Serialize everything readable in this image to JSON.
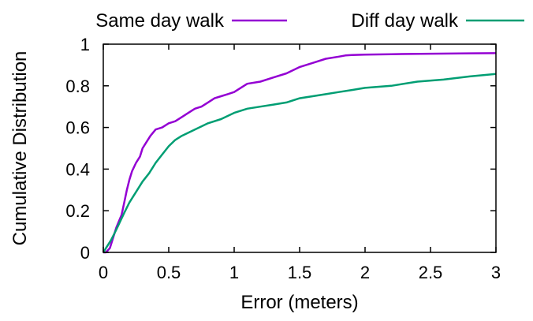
{
  "chart_data": {
    "type": "line",
    "title": "",
    "xlabel": "Error (meters)",
    "ylabel": "Cumulative Distribution",
    "xlim": [
      0,
      3
    ],
    "ylim": [
      0,
      1
    ],
    "xticks": [
      "0",
      "0.5",
      "1",
      "1.5",
      "2",
      "2.5",
      "3"
    ],
    "yticks": [
      "0",
      "0.2",
      "0.4",
      "0.6",
      "0.8",
      "1"
    ],
    "xtick_values": [
      0,
      0.5,
      1,
      1.5,
      2,
      2.5,
      3
    ],
    "ytick_values": [
      0,
      0.2,
      0.4,
      0.6,
      0.8,
      1
    ],
    "grid": false,
    "legend": "top",
    "series": [
      {
        "name": "Same day walk",
        "color": "#9400d3",
        "x": [
          0,
          0.02,
          0.05,
          0.08,
          0.1,
          0.12,
          0.14,
          0.16,
          0.18,
          0.2,
          0.22,
          0.25,
          0.28,
          0.3,
          0.33,
          0.36,
          0.4,
          0.45,
          0.5,
          0.55,
          0.6,
          0.65,
          0.7,
          0.75,
          0.8,
          0.85,
          0.9,
          0.95,
          1.0,
          1.05,
          1.1,
          1.2,
          1.3,
          1.4,
          1.5,
          1.6,
          1.7,
          1.8,
          1.85,
          1.9,
          2.0,
          2.2,
          2.5,
          2.8,
          3.0
        ],
        "y": [
          0,
          0.0,
          0.02,
          0.08,
          0.12,
          0.15,
          0.18,
          0.24,
          0.3,
          0.35,
          0.39,
          0.43,
          0.46,
          0.5,
          0.53,
          0.56,
          0.59,
          0.6,
          0.62,
          0.63,
          0.65,
          0.67,
          0.69,
          0.7,
          0.72,
          0.74,
          0.75,
          0.76,
          0.77,
          0.79,
          0.81,
          0.82,
          0.84,
          0.86,
          0.89,
          0.91,
          0.93,
          0.94,
          0.946,
          0.948,
          0.95,
          0.952,
          0.954,
          0.956,
          0.957
        ]
      },
      {
        "name": "Diff day walk",
        "color": "#009e73",
        "x": [
          0,
          0.03,
          0.06,
          0.1,
          0.13,
          0.16,
          0.2,
          0.25,
          0.3,
          0.35,
          0.4,
          0.45,
          0.5,
          0.55,
          0.6,
          0.7,
          0.8,
          0.9,
          1.0,
          1.1,
          1.2,
          1.3,
          1.4,
          1.5,
          1.6,
          1.7,
          1.8,
          1.9,
          2.0,
          2.2,
          2.4,
          2.6,
          2.8,
          3.0
        ],
        "y": [
          0,
          0.03,
          0.06,
          0.11,
          0.15,
          0.19,
          0.24,
          0.29,
          0.34,
          0.38,
          0.43,
          0.47,
          0.51,
          0.54,
          0.56,
          0.59,
          0.62,
          0.64,
          0.67,
          0.69,
          0.7,
          0.71,
          0.72,
          0.74,
          0.75,
          0.76,
          0.77,
          0.78,
          0.79,
          0.8,
          0.82,
          0.83,
          0.845,
          0.857
        ]
      }
    ]
  }
}
